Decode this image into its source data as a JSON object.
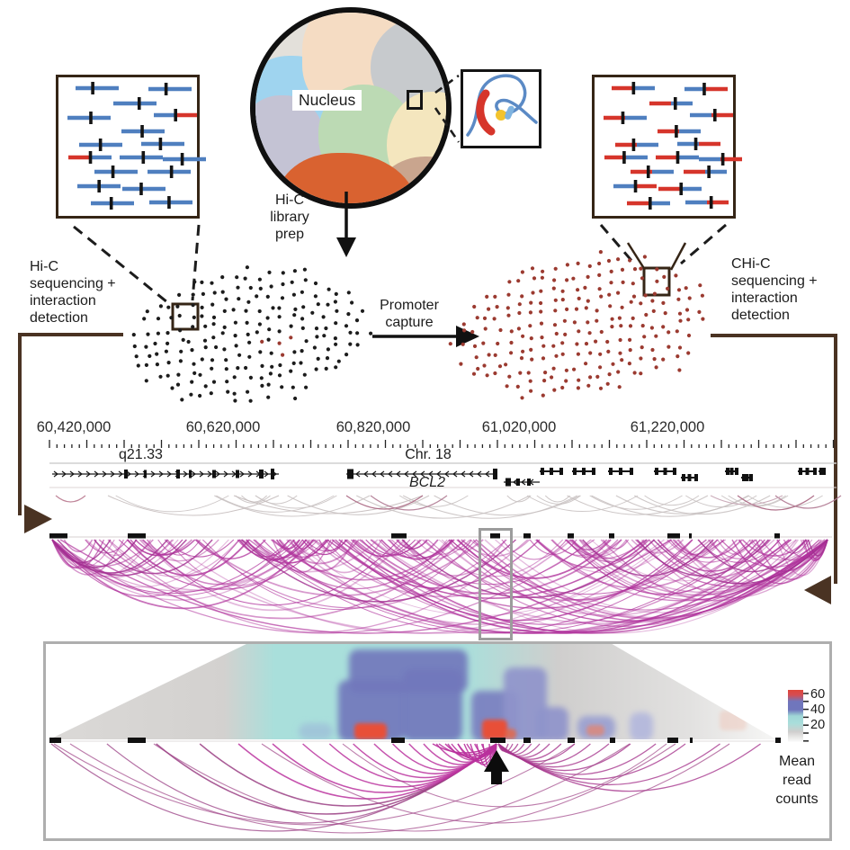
{
  "figure": {
    "nucleus_label": "Nucleus",
    "hic_library_prep": [
      "Hi-C",
      "library",
      "prep"
    ],
    "promoter_capture": [
      "Promoter",
      "capture"
    ],
    "method_left": [
      "Hi-C",
      "sequencing +",
      "interaction",
      "detection"
    ],
    "method_right": [
      "CHi-C",
      "sequencing +",
      "interaction",
      "detection"
    ]
  },
  "genome_browser": {
    "coordinates": [
      "60,420,000",
      "60,620,000",
      "60,820,000",
      "61,020,000",
      "61,220,000"
    ],
    "cytoband": "q21.33",
    "chromosome": "Chr. 18",
    "gene": "BCL2"
  },
  "heatmap_legend": {
    "ticks": [
      "60",
      "40",
      "20"
    ],
    "caption": [
      "Mean",
      "read",
      "counts"
    ]
  },
  "colors": {
    "read_blue": "#4f7fbf",
    "read_red": "#d6352b",
    "dot_black": "#1c1c1c",
    "dot_red": "#9b3a30",
    "arc_magenta": "#b0339c",
    "heatmap_teal": "#a9dfdb",
    "heatmap_blue": "#7277bc",
    "heatmap_red": "#e85038",
    "bracket_brown": "#4a3323"
  }
}
